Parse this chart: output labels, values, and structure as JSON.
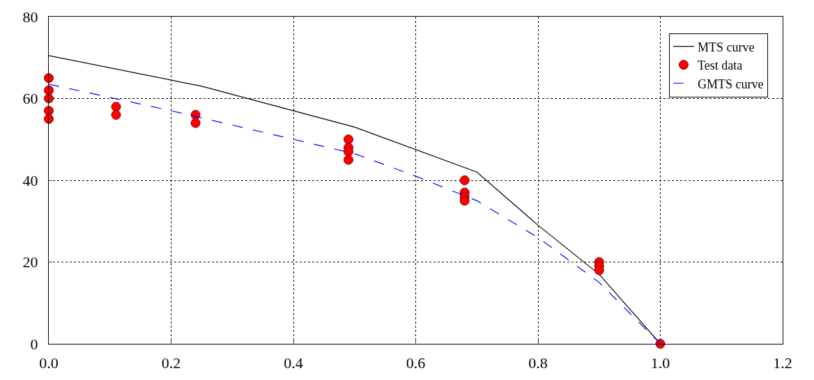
{
  "chart_data": {
    "type": "line",
    "xlim": [
      0,
      1.2
    ],
    "xticks": [
      {
        "value": 0,
        "label": "0.0"
      },
      {
        "value": 0.2,
        "label": "0.2"
      },
      {
        "value": 0.4,
        "label": "0.4"
      },
      {
        "value": 0.6,
        "label": "0.6"
      },
      {
        "value": 0.8,
        "label": "0.8"
      },
      {
        "value": 1,
        "label": "1.0"
      },
      {
        "value": 1.2,
        "label": "1.2"
      }
    ],
    "ylim": [
      0,
      80
    ],
    "yticks": [
      0,
      20,
      40,
      60,
      80
    ],
    "grid": true,
    "legend": "top right",
    "series": [
      {
        "name": "MTS curve",
        "color": "#000000",
        "line_style": "solid",
        "marker": "none",
        "x": [
          0,
          0.25,
          0.5,
          0.7,
          0.8,
          0.9,
          1.0
        ],
        "values": [
          70.5,
          63,
          53,
          42,
          29,
          17,
          0
        ]
      },
      {
        "name": "Test data",
        "type": "scatter",
        "color": "#ff0000",
        "marker": "circle",
        "x": [
          0,
          0,
          0,
          0,
          0,
          0.11,
          0.11,
          0.24,
          0.24,
          0.49,
          0.49,
          0.49,
          0.49,
          0.68,
          0.68,
          0.68,
          0.68,
          0.9,
          0.9,
          0.9,
          1.0
        ],
        "values": [
          65,
          62,
          60,
          57,
          55,
          58,
          56,
          56,
          54,
          50,
          48,
          47,
          45,
          40,
          37,
          36,
          35,
          20,
          19,
          18,
          0
        ]
      },
      {
        "name": "GMTS curve",
        "color": "#0000ff",
        "line_style": "dashed",
        "marker": "none",
        "x": [
          0,
          0.2,
          0.4,
          0.5,
          0.6,
          0.7,
          0.8,
          0.9,
          1.0
        ],
        "values": [
          63.5,
          57,
          50,
          46.5,
          41,
          35,
          26,
          15,
          0
        ]
      }
    ]
  }
}
